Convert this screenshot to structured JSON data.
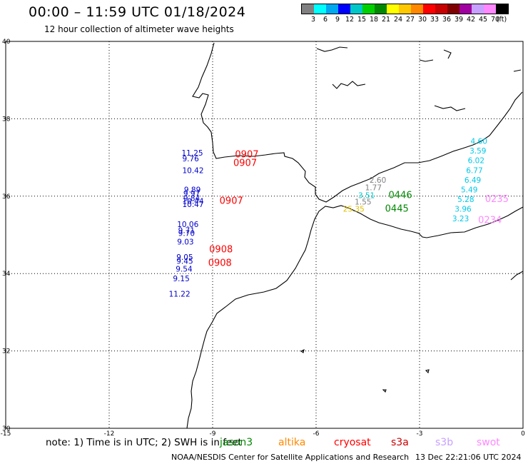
{
  "header": {
    "title": "00:00 – 11:59 UTC 01/18/2024",
    "subtitle": "12 hour collection of altimeter wave heights"
  },
  "legend": {
    "colors": [
      "#808080",
      "#00ffff",
      "#00a8f0",
      "#0000ff",
      "#00c8c8",
      "#00d000",
      "#008800",
      "#ffff00",
      "#ffc800",
      "#ff8800",
      "#ff0000",
      "#c80000",
      "#800000",
      "#a000a0",
      "#c8a0ff",
      "#ff88ff",
      "#000000"
    ],
    "labels": [
      "3",
      "6",
      "9",
      "12",
      "15",
      "18",
      "21",
      "24",
      "27",
      "30",
      "33",
      "36",
      "39",
      "42",
      "45",
      "70",
      "(ft)"
    ]
  },
  "map": {
    "lat_range": [
      30,
      40
    ],
    "lon_range": [
      -15,
      0
    ],
    "y_ticks": [
      "30",
      "32",
      "34",
      "36",
      "38",
      "40"
    ],
    "x_ticks": [
      "-15",
      "-12",
      "-9",
      "-6",
      "-3",
      "0"
    ],
    "grid": "dotted"
  },
  "observations": [
    {
      "text": "11.25",
      "lon": -9.9,
      "lat": 37.05,
      "color": "#0000cc"
    },
    {
      "text": "9.76",
      "lon": -9.88,
      "lat": 36.9,
      "color": "#0000cc"
    },
    {
      "text": "10.42",
      "lon": -9.88,
      "lat": 36.6,
      "color": "#0000cc"
    },
    {
      "text": "9.89",
      "lon": -9.83,
      "lat": 36.1,
      "color": "#0000cc"
    },
    {
      "text": "9.97",
      "lon": -9.85,
      "lat": 36.0,
      "color": "#0000cc"
    },
    {
      "text": "9.84",
      "lon": -9.85,
      "lat": 35.88,
      "color": "#0000cc"
    },
    {
      "text": "10.44",
      "lon": -9.88,
      "lat": 35.8,
      "color": "#0000cc"
    },
    {
      "text": "10.47",
      "lon": -9.88,
      "lat": 35.72,
      "color": "#0000cc"
    },
    {
      "text": "10.06",
      "lon": -10.03,
      "lat": 35.2,
      "color": "#0000cc"
    },
    {
      "text": "9.71",
      "lon": -10.0,
      "lat": 35.05,
      "color": "#0000cc"
    },
    {
      "text": "9.70",
      "lon": -10.0,
      "lat": 34.97,
      "color": "#0000cc"
    },
    {
      "text": "9.03",
      "lon": -10.03,
      "lat": 34.75,
      "color": "#0000cc"
    },
    {
      "text": "9.05",
      "lon": -10.05,
      "lat": 34.35,
      "color": "#0000cc"
    },
    {
      "text": "9.45",
      "lon": -10.05,
      "lat": 34.25,
      "color": "#0000cc"
    },
    {
      "text": "9.54",
      "lon": -10.07,
      "lat": 34.05,
      "color": "#0000cc"
    },
    {
      "text": "9.15",
      "lon": -10.15,
      "lat": 33.8,
      "color": "#0000cc"
    },
    {
      "text": "11.22",
      "lon": -10.27,
      "lat": 33.4,
      "color": "#0000cc"
    },
    {
      "text": "2.60",
      "lon": -4.45,
      "lat": 36.35,
      "color": "#808080"
    },
    {
      "text": "1.77",
      "lon": -4.58,
      "lat": 36.15,
      "color": "#808080"
    },
    {
      "text": "1.55",
      "lon": -4.88,
      "lat": 35.78,
      "color": "#808080"
    },
    {
      "text": "3.51",
      "lon": -4.78,
      "lat": 35.95,
      "color": "#00c8c8"
    },
    {
      "text": "25.35",
      "lon": -5.22,
      "lat": 35.6,
      "color": "#e0c000"
    },
    {
      "text": "4.60",
      "lon": -1.52,
      "lat": 37.35,
      "color": "#00c8e8"
    },
    {
      "text": "3.59",
      "lon": -1.55,
      "lat": 37.1,
      "color": "#00c8e8"
    },
    {
      "text": "6.02",
      "lon": -1.6,
      "lat": 36.85,
      "color": "#00c8e8"
    },
    {
      "text": "6.77",
      "lon": -1.65,
      "lat": 36.6,
      "color": "#00c8e8"
    },
    {
      "text": "6.49",
      "lon": -1.7,
      "lat": 36.35,
      "color": "#00c8e8"
    },
    {
      "text": "5.49",
      "lon": -1.8,
      "lat": 36.1,
      "color": "#00c8e8"
    },
    {
      "text": "5.28",
      "lon": -1.9,
      "lat": 35.85,
      "color": "#00c8e8"
    },
    {
      "text": "3.96",
      "lon": -1.98,
      "lat": 35.6,
      "color": "#00c8e8"
    },
    {
      "text": "3.23",
      "lon": -2.05,
      "lat": 35.35,
      "color": "#00c8e8"
    }
  ],
  "passes": [
    {
      "text": "0907",
      "lon": -8.35,
      "lat": 37.0,
      "color": "#ff0000"
    },
    {
      "text": "0907",
      "lon": -8.4,
      "lat": 36.78,
      "color": "#ff0000"
    },
    {
      "text": "0907",
      "lon": -8.8,
      "lat": 35.8,
      "color": "#ff0000"
    },
    {
      "text": "0908",
      "lon": -9.1,
      "lat": 34.55,
      "color": "#ff0000"
    },
    {
      "text": "0908",
      "lon": -9.13,
      "lat": 34.2,
      "color": "#ff0000"
    },
    {
      "text": "0446",
      "lon": -3.9,
      "lat": 35.95,
      "color": "#008800"
    },
    {
      "text": "0445",
      "lon": -4.0,
      "lat": 35.6,
      "color": "#008800"
    },
    {
      "text": "0235",
      "lon": -1.1,
      "lat": 35.85,
      "color": "#ff88ff"
    },
    {
      "text": "0234",
      "lon": -1.3,
      "lat": 35.3,
      "color": "#ff88ff"
    }
  ],
  "footer": {
    "note": "note: 1) Time is in UTC; 2) SWH is in feet",
    "satellites": [
      {
        "name": "jason3",
        "color": "#008800"
      },
      {
        "name": "altika",
        "color": "#ff8800"
      },
      {
        "name": "cryosat",
        "color": "#ff0000"
      },
      {
        "name": "s3a",
        "color": "#c80000"
      },
      {
        "name": "s3b",
        "color": "#c8a0ff"
      },
      {
        "name": "swot",
        "color": "#ff88ff"
      }
    ],
    "credit": "NOAA/NESDIS Center for Satellite Applications and Research",
    "generated": "13 Dec 22:21:06 UTC 2024"
  }
}
